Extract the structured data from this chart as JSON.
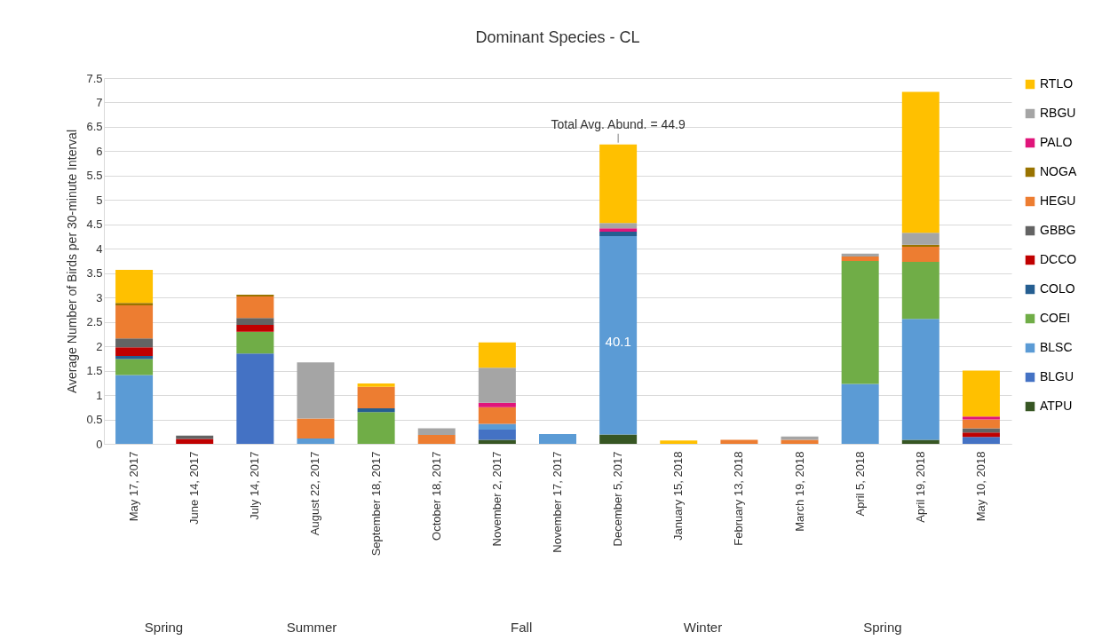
{
  "chart_data": {
    "type": "bar",
    "title": "Dominant Species - CL",
    "ylabel": "Average Number of Birds per 30-minute Interval",
    "categories": [
      "May 17, 2017",
      "June 14, 2017",
      "July 14, 2017",
      "August 22, 2017",
      "September 18, 2017",
      "October 18, 2017",
      "November 2, 2017",
      "November 17, 2017",
      "December 5, 2017",
      "January 15, 2018",
      "February 13, 2018",
      "March 19, 2018",
      "April 5, 2018",
      "April 19, 2018",
      "May 10, 2018"
    ],
    "stacked": true,
    "series": [
      {
        "name": "ATPU",
        "color": "#375623",
        "values": [
          null,
          null,
          null,
          null,
          null,
          null,
          0.08,
          null,
          0.19,
          null,
          null,
          null,
          null,
          0.08,
          null
        ]
      },
      {
        "name": "BLGU",
        "color": "#4472c4",
        "values": [
          null,
          null,
          1.85,
          null,
          null,
          null,
          0.21,
          null,
          null,
          null,
          null,
          null,
          null,
          null,
          0.14
        ]
      },
      {
        "name": "BLSC",
        "color": "#5b9bd5",
        "values": [
          1.41,
          null,
          null,
          0.11,
          null,
          null,
          0.12,
          0.2,
          4.07,
          null,
          null,
          null,
          1.23,
          2.48,
          null
        ]
      },
      {
        "name": "COEI",
        "color": "#70ad47",
        "values": [
          0.33,
          null,
          0.45,
          null,
          0.65,
          null,
          null,
          null,
          null,
          null,
          null,
          null,
          2.52,
          1.17,
          null
        ]
      },
      {
        "name": "COLO",
        "color": "#255e91",
        "values": [
          0.06,
          null,
          null,
          null,
          0.08,
          null,
          null,
          null,
          0.09,
          null,
          null,
          null,
          null,
          null,
          null
        ]
      },
      {
        "name": "DCCO",
        "color": "#c00000",
        "values": [
          0.18,
          0.1,
          0.14,
          null,
          null,
          null,
          null,
          null,
          null,
          null,
          null,
          null,
          null,
          null,
          0.09
        ]
      },
      {
        "name": "GBBG",
        "color": "#636363",
        "values": [
          0.18,
          0.07,
          0.14,
          null,
          null,
          null,
          null,
          null,
          null,
          null,
          null,
          null,
          null,
          null,
          0.09
        ]
      },
      {
        "name": "HEGU",
        "color": "#ed7d31",
        "values": [
          0.68,
          null,
          0.44,
          0.41,
          0.44,
          0.18,
          0.34,
          null,
          null,
          null,
          0.08,
          0.08,
          0.09,
          0.31,
          0.18
        ]
      },
      {
        "name": "NOGA",
        "color": "#997300",
        "values": [
          0.05,
          null,
          0.04,
          null,
          null,
          null,
          null,
          null,
          null,
          null,
          null,
          null,
          null,
          0.04,
          null
        ]
      },
      {
        "name": "PALO",
        "color": "#e0157a",
        "values": [
          null,
          null,
          null,
          null,
          null,
          null,
          0.09,
          null,
          0.07,
          null,
          null,
          null,
          null,
          null,
          0.06
        ]
      },
      {
        "name": "RBGU",
        "color": "#a5a5a5",
        "values": [
          null,
          null,
          null,
          1.15,
          null,
          0.14,
          0.72,
          null,
          0.11,
          null,
          null,
          0.07,
          0.06,
          0.25,
          null
        ]
      },
      {
        "name": "RTLO",
        "color": "#ffc000",
        "values": [
          0.68,
          null,
          null,
          null,
          0.07,
          null,
          0.52,
          null,
          1.61,
          0.07,
          null,
          null,
          null,
          2.89,
          0.94
        ]
      }
    ],
    "ylim": [
      0,
      7.5
    ],
    "yticks": [
      0,
      0.5,
      1,
      1.5,
      2,
      2.5,
      3,
      3.5,
      4,
      4.5,
      5,
      5.5,
      6,
      6.5,
      7,
      7.5
    ],
    "grid": "y",
    "legend": "right",
    "annotations": [
      {
        "text": "Total Avg. Abund. = 44.9",
        "x": "December 5, 2017",
        "y": 6.14
      },
      "40.1",
      "Spring",
      "Summer",
      "Fall",
      "Winter",
      "Spring"
    ]
  }
}
